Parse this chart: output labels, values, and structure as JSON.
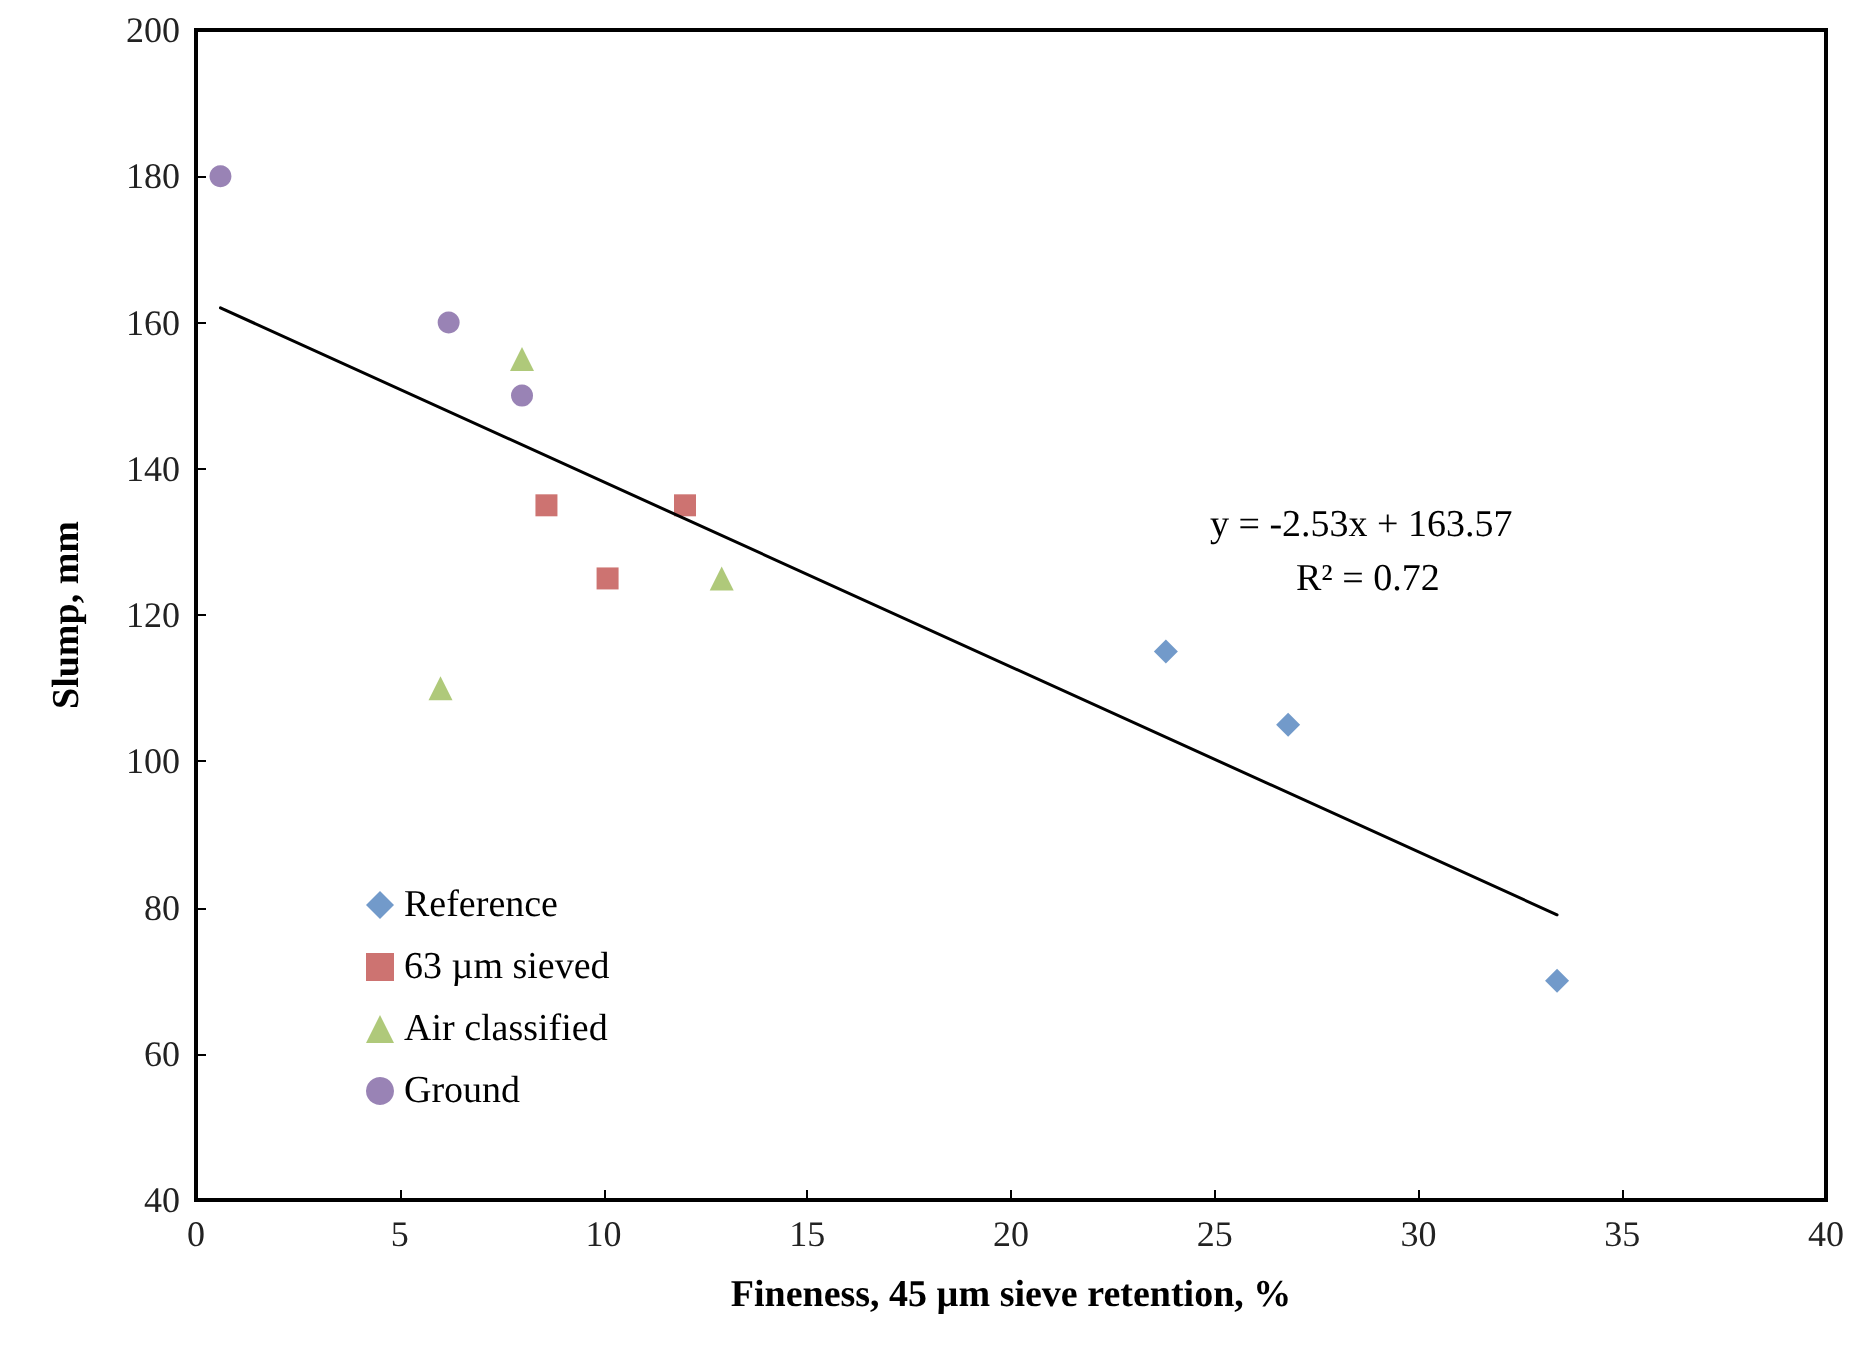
{
  "chart_data": {
    "type": "scatter",
    "xlabel": "Fineness, 45 µm sieve retention, %",
    "ylabel": "Slump, mm",
    "xlim": [
      0,
      40
    ],
    "xticks": [
      0,
      5,
      10,
      15,
      20,
      25,
      30,
      35,
      40
    ],
    "ylim": [
      40,
      200
    ],
    "yticks": [
      40,
      60,
      80,
      100,
      120,
      140,
      160,
      180,
      200
    ],
    "grid": false,
    "legend": "bottom left",
    "annotations": [
      "y = -2.53x + 163.57",
      "R² = 0.72"
    ],
    "series": [
      {
        "name": "Reference",
        "color": "#4f81bd",
        "marker": "diamond",
        "x": [
          23.8,
          26.8,
          33.4
        ],
        "values": [
          115,
          105,
          70
        ]
      },
      {
        "name": "63 µm sieved",
        "color": "#c0504d",
        "marker": "square",
        "x": [
          8.6,
          10.1,
          12
        ],
        "values": [
          135,
          125,
          135
        ]
      },
      {
        "name": "Air classified",
        "color": "#9bbb59",
        "marker": "triangle",
        "x": [
          8,
          6,
          12.9
        ],
        "values": [
          155,
          110,
          125
        ]
      },
      {
        "name": "Ground",
        "color": "#8064a2",
        "marker": "circle",
        "x": [
          0.6,
          6.2,
          8
        ],
        "values": [
          180,
          160,
          150
        ]
      },
      {
        "type": "line",
        "color": "#000000",
        "marker": "none",
        "line_style": "solid",
        "x": [
          0.6,
          33.4
        ],
        "values": [
          162,
          79
        ]
      }
    ]
  }
}
